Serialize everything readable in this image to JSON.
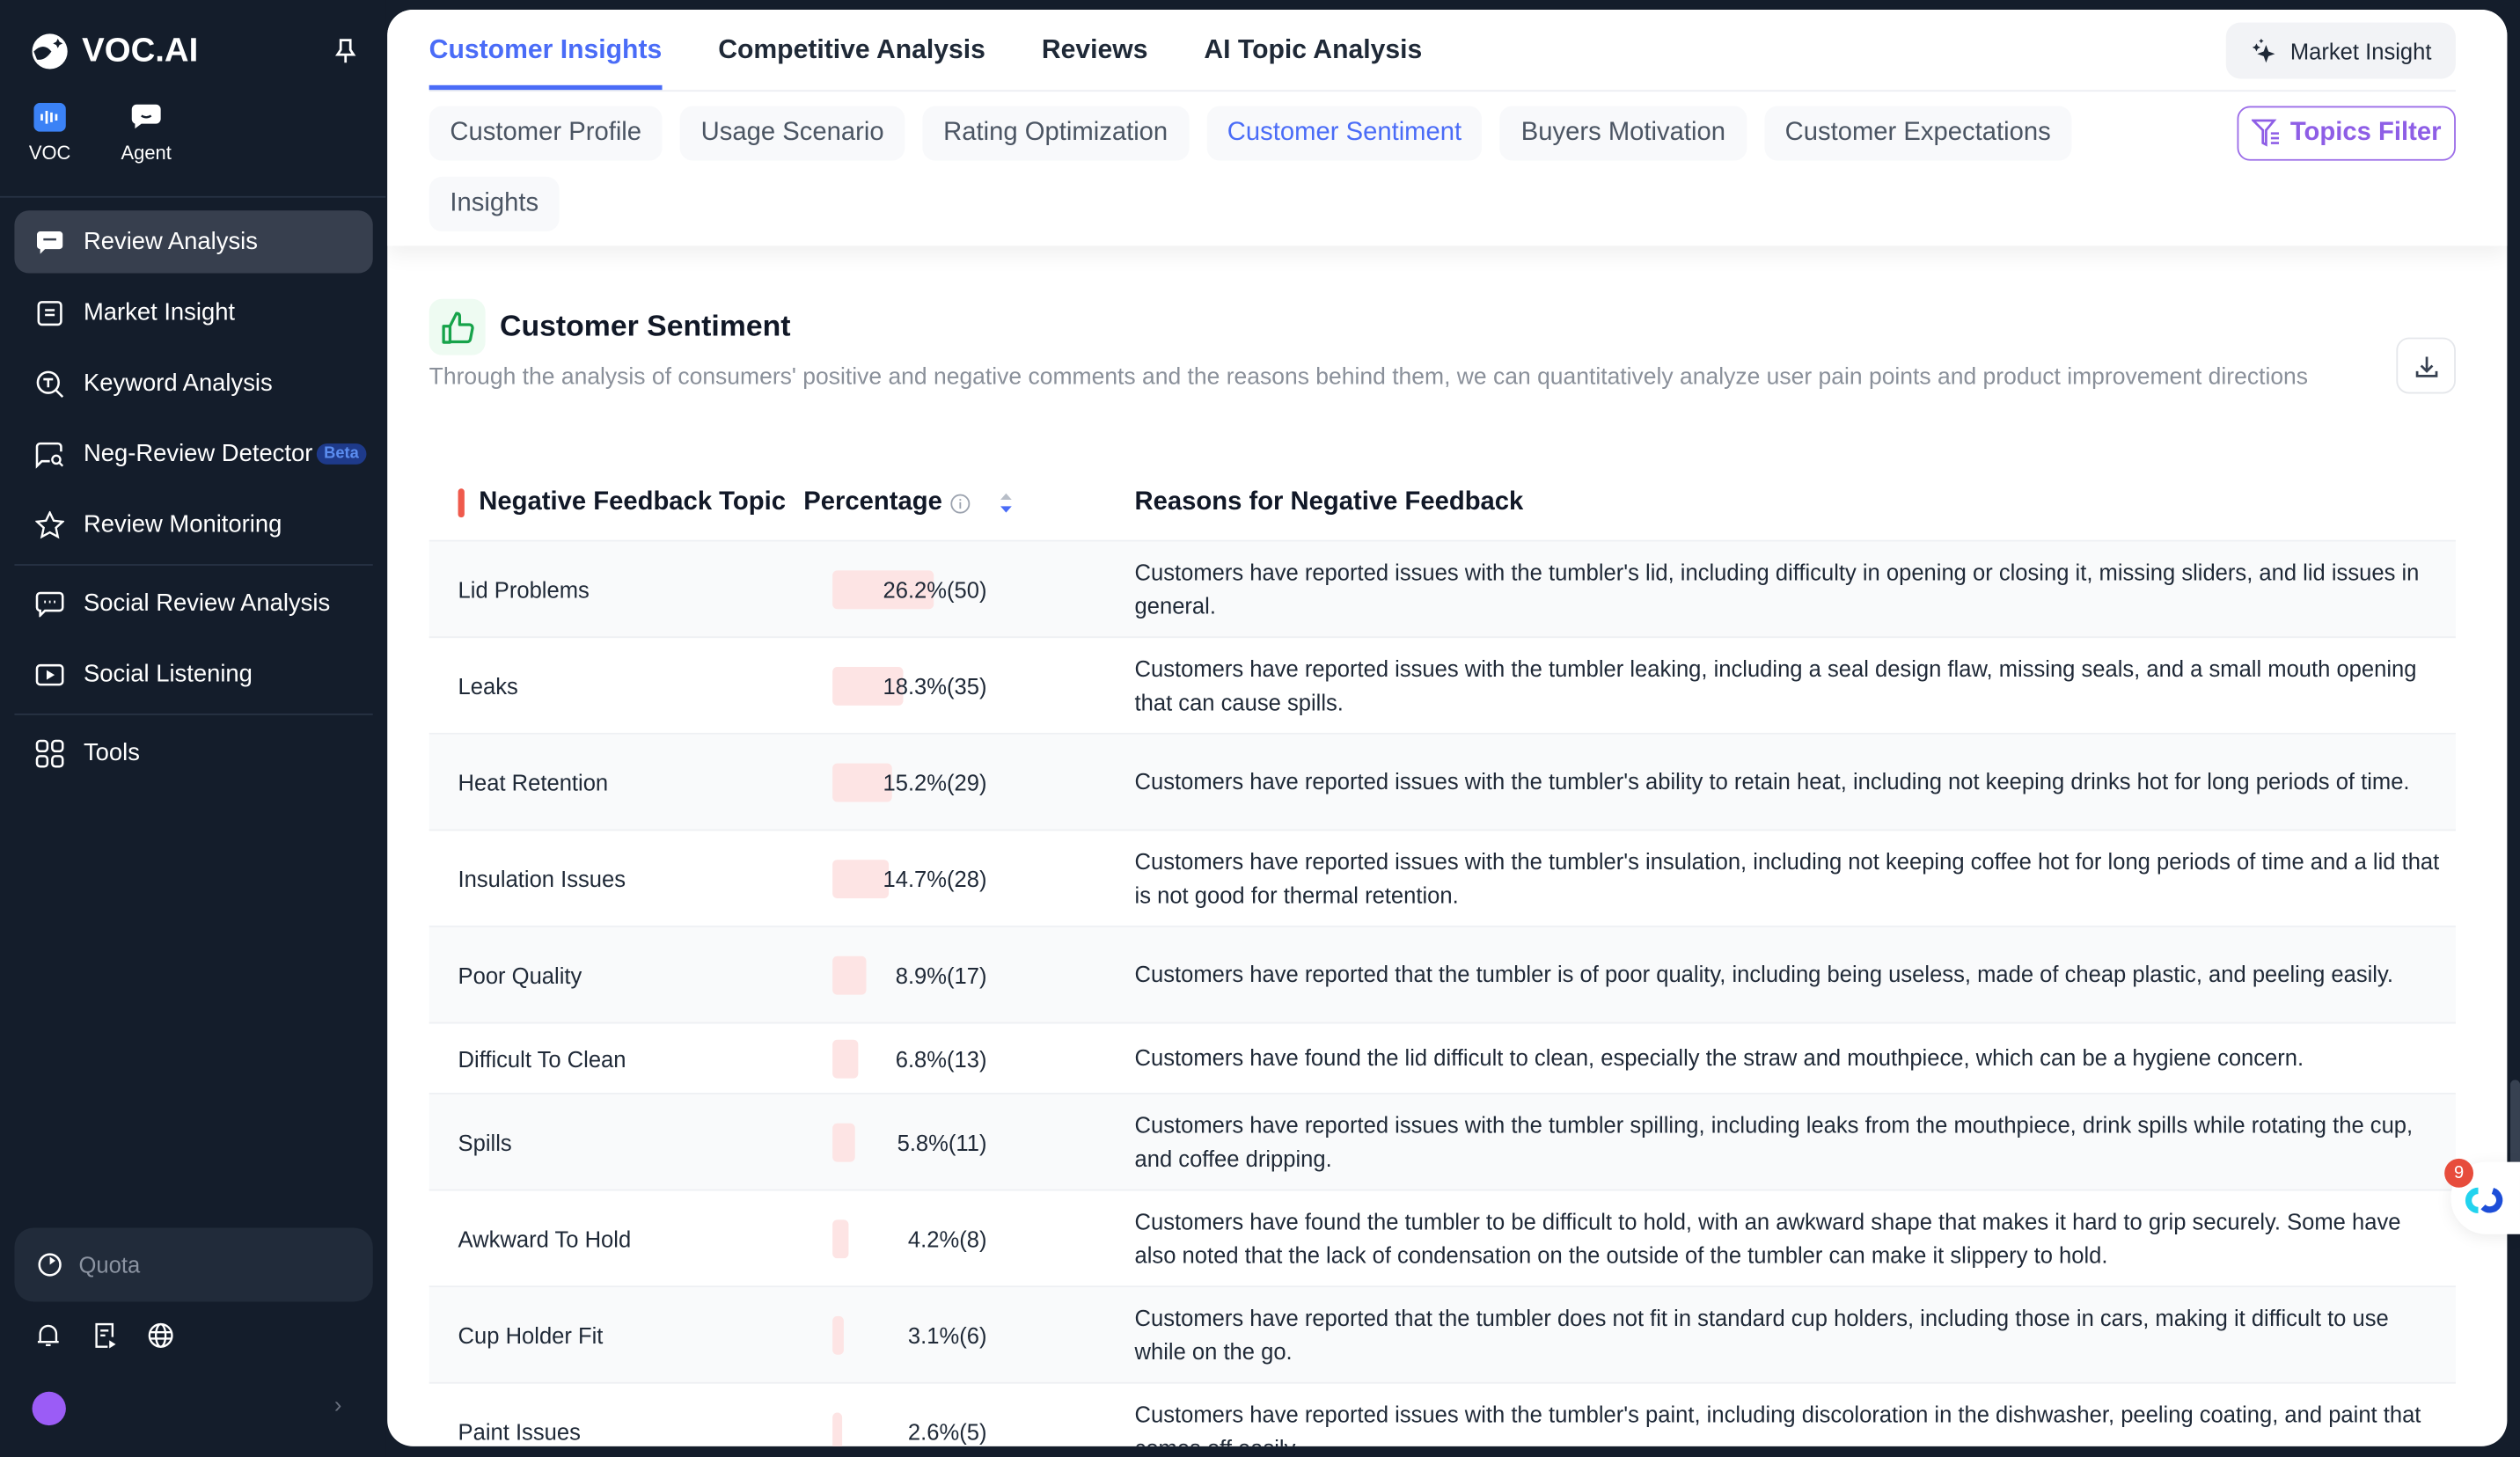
{
  "brand": {
    "name": "VOC.AI",
    "accent": "#4a6cf7",
    "filter_color": "#8e5ee6"
  },
  "sidebar": {
    "apps": [
      {
        "label": "VOC",
        "icon": "voc-waveform-icon"
      },
      {
        "label": "Agent",
        "icon": "agent-chat-icon"
      }
    ],
    "items": [
      {
        "label": "Review Analysis",
        "icon": "chat-bubble-icon",
        "active": true
      },
      {
        "label": "Market Insight",
        "icon": "document-icon"
      },
      {
        "label": "Keyword Analysis",
        "icon": "keyword-search-icon"
      },
      {
        "label": "Neg-Review Detector",
        "icon": "chat-search-icon",
        "badge": "Beta"
      },
      {
        "label": "Review Monitoring",
        "icon": "star-icon"
      },
      {
        "label": "Social Review Analysis",
        "icon": "chat-dots-icon"
      },
      {
        "label": "Social Listening",
        "icon": "play-icon"
      },
      {
        "label": "Tools",
        "icon": "grid-icon"
      }
    ],
    "quota": "Quota"
  },
  "header": {
    "tabs": [
      {
        "label": "Customer Insights",
        "active": true
      },
      {
        "label": "Competitive Analysis"
      },
      {
        "label": "Reviews"
      },
      {
        "label": "AI Topic Analysis"
      }
    ],
    "market_insight_button": "Market Insight",
    "subtabs": [
      {
        "label": "Customer Profile"
      },
      {
        "label": "Usage Scenario"
      },
      {
        "label": "Rating Optimization"
      },
      {
        "label": "Customer Sentiment",
        "active": true
      },
      {
        "label": "Buyers Motivation"
      },
      {
        "label": "Customer Expectations"
      },
      {
        "label": "Insights"
      }
    ],
    "topics_filter": "Topics Filter"
  },
  "section": {
    "title": "Customer Sentiment",
    "description": "Through the analysis of consumers' positive and negative comments and the reasons behind them, we can quantitatively analyze user pain points and product improvement directions"
  },
  "table": {
    "headers": {
      "topic": "Negative Feedback Topic",
      "percentage": "Percentage",
      "reasons": "Reasons for Negative Feedback"
    },
    "rows": [
      {
        "topic": "Lid Problems",
        "percent": 26.2,
        "label": "26.2%(50)",
        "reason": "Customers have reported issues with the tumbler's lid, including difficulty in opening or closing it, missing sliders, and lid issues in general."
      },
      {
        "topic": "Leaks",
        "percent": 18.3,
        "label": "18.3%(35)",
        "reason": "Customers have reported issues with the tumbler leaking, including a seal design flaw, missing seals, and a small mouth opening that can cause spills."
      },
      {
        "topic": "Heat Retention",
        "percent": 15.2,
        "label": "15.2%(29)",
        "reason": "Customers have reported issues with the tumbler's ability to retain heat, including not keeping drinks hot for long periods of time."
      },
      {
        "topic": "Insulation Issues",
        "percent": 14.7,
        "label": "14.7%(28)",
        "reason": "Customers have reported issues with the tumbler's insulation, including not keeping coffee hot for long periods of time and a lid that is not good for thermal retention."
      },
      {
        "topic": "Poor Quality",
        "percent": 8.9,
        "label": "8.9%(17)",
        "reason": "Customers have reported that the tumbler is of poor quality, including being useless, made of cheap plastic, and peeling easily."
      },
      {
        "topic": "Difficult To Clean",
        "percent": 6.8,
        "label": "6.8%(13)",
        "reason": "Customers have found the lid difficult to clean, especially the straw and mouthpiece, which can be a hygiene concern."
      },
      {
        "topic": "Spills",
        "percent": 5.8,
        "label": "5.8%(11)",
        "reason": "Customers have reported issues with the tumbler spilling, including leaks from the mouthpiece, drink spills while rotating the cup, and coffee dripping."
      },
      {
        "topic": "Awkward To Hold",
        "percent": 4.2,
        "label": "4.2%(8)",
        "reason": "Customers have found the tumbler to be difficult to hold, with an awkward shape that makes it hard to grip securely. Some have also noted that the lack of condensation on the outside of the tumbler can make it slippery to hold."
      },
      {
        "topic": "Cup Holder Fit",
        "percent": 3.1,
        "label": "3.1%(6)",
        "reason": "Customers have reported that the tumbler does not fit in standard cup holders, including those in cars, making it difficult to use while on the go."
      },
      {
        "topic": "Paint Issues",
        "percent": 2.6,
        "label": "2.6%(5)",
        "reason": "Customers have reported issues with the tumbler's paint, including discoloration in the dishwasher, peeling coating, and paint that comes off easily."
      }
    ]
  },
  "floating_widget": {
    "notification_count": "9"
  }
}
